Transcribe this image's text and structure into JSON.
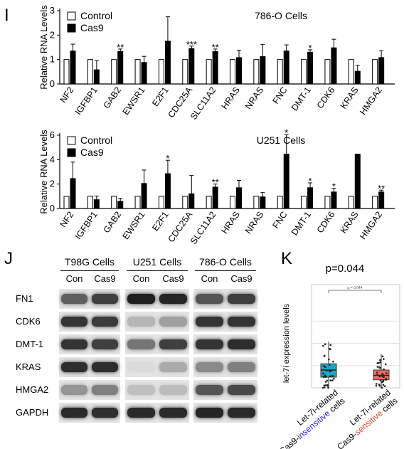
{
  "panels": {
    "I": {
      "letter": "I"
    },
    "J": {
      "letter": "J"
    },
    "K": {
      "letter": "K"
    }
  },
  "chart_data": [
    {
      "type": "bar",
      "title": "786-O Cells",
      "ylabel": "Relative RNA Levels",
      "ylim": [
        0,
        3
      ],
      "yticks": [
        "0",
        "1",
        "2",
        "3"
      ],
      "legend": [
        "Control",
        "Cas9"
      ],
      "legend_position": "top-left",
      "categories": [
        "NF2",
        "IGFBP1",
        "GAB2",
        "EWSR1",
        "E2F1",
        "CDC25A",
        "SLC11A2",
        "HRAS",
        "NRAS",
        "FNC",
        "DMT-1",
        "CDK6",
        "KRAS",
        "HMGA2"
      ],
      "series": [
        {
          "name": "Control",
          "values": [
            1,
            1,
            1,
            1,
            1,
            1,
            1,
            1,
            1,
            1,
            1,
            1,
            1,
            1
          ]
        },
        {
          "name": "Cas9",
          "values": [
            1.35,
            0.58,
            1.33,
            0.88,
            1.75,
            1.45,
            1.33,
            1.08,
            1.12,
            1.35,
            1.3,
            1.48,
            0.52,
            1.08
          ],
          "errors": [
            0.28,
            0.38,
            0.1,
            0.25,
            1.0,
            0.1,
            0.1,
            0.3,
            0.5,
            0.25,
            0.1,
            0.35,
            0.25,
            0.28
          ]
        }
      ],
      "significance": [
        "",
        "",
        "**",
        "",
        "",
        "***",
        "**",
        "",
        "",
        "",
        "*",
        "",
        "",
        ""
      ]
    },
    {
      "type": "bar",
      "title": "U251 Cells",
      "ylabel": "Relative RNA Levels",
      "ylim": [
        0,
        6
      ],
      "yticks": [
        "0",
        "2",
        "4",
        "6"
      ],
      "legend": [
        "Control",
        "Cas9"
      ],
      "legend_position": "top-left",
      "categories": [
        "NF2",
        "IGFBP1",
        "GAB2",
        "EWSR1",
        "E2F1",
        "CDC25A",
        "SLC11A2",
        "HRAS",
        "NRAS",
        "FNC",
        "DMT-1",
        "CDK6",
        "KRAS",
        "HMGA2"
      ],
      "series": [
        {
          "name": "Control",
          "values": [
            1,
            1,
            1,
            1,
            1,
            1,
            1,
            1,
            1,
            1,
            1,
            1,
            1,
            1
          ]
        },
        {
          "name": "Cas9",
          "values": [
            2.45,
            0.72,
            0.58,
            2.05,
            2.85,
            1.2,
            1.75,
            1.7,
            0.95,
            4.45,
            1.7,
            1.35,
            4.45,
            1.35
          ],
          "errors": [
            1.35,
            0.3,
            0.25,
            1.1,
            1.1,
            1.5,
            0.25,
            0.6,
            0.35,
            1.6,
            0.4,
            0.3,
            0,
            0.15
          ]
        }
      ],
      "significance": [
        "",
        "",
        "",
        "",
        "*",
        "",
        "**",
        "",
        "",
        "*",
        "*",
        "*",
        "",
        "**"
      ]
    },
    {
      "type": "box",
      "title": "p=0.044",
      "ylabel": "let-7i expression levels",
      "bracket_label": "p = 0.044",
      "categories": [
        "Let-7i-related Cas9-insensitive cells",
        "Let-7i-related Cas9-sensitive cells"
      ],
      "category_lines": [
        {
          "line1": "Let-7i-related",
          "prefix": "Cas9-",
          "colored": "insensitive",
          "suffix": " cells",
          "color": "#2b2bd6"
        },
        {
          "line1": "Let-7i-related",
          "prefix": "Cas9-",
          "colored": "sensitive",
          "suffix": " cells",
          "color": "#e8462e"
        }
      ],
      "box_colors": [
        "#1aa7c9",
        "#f26a61"
      ],
      "boxes": [
        {
          "q1": 0.12,
          "median": 0.2,
          "q3": 0.27,
          "low": 0.0,
          "high": 0.52
        },
        {
          "q1": 0.09,
          "median": 0.14,
          "q3": 0.2,
          "low": 0.0,
          "high": 0.38
        }
      ]
    }
  ],
  "western_blot": {
    "groups": [
      {
        "name": "T98G Cells",
        "lanes": [
          "Con",
          "Cas9"
        ]
      },
      {
        "name": "U251 Cells",
        "lanes": [
          "Con",
          "Cas9"
        ]
      },
      {
        "name": "786-O Cells",
        "lanes": [
          "Con",
          "Cas9"
        ]
      }
    ],
    "rows": [
      "FN1",
      "CDK6",
      "DMT-1",
      "KRAS",
      "HMGA2",
      "GAPDH"
    ]
  }
}
